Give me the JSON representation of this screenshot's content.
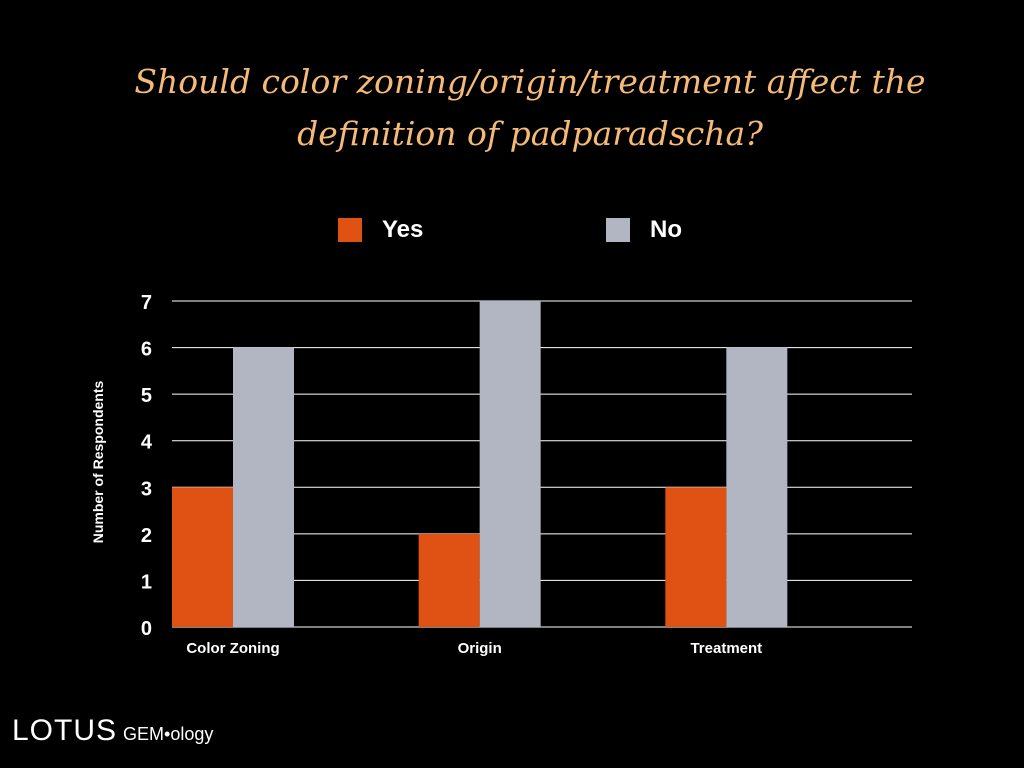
{
  "slide": {
    "title_lines": [
      "Should color zoning/origin/treatment affect the",
      "definition of padparadscha?"
    ],
    "title_color": "#f5b978"
  },
  "chart_data": {
    "type": "bar",
    "categories": [
      "Color Zoning",
      "Origin",
      "Treatment"
    ],
    "series": [
      {
        "name": "Yes",
        "values": [
          3,
          2,
          3
        ],
        "color": "#e05214"
      },
      {
        "name": "No",
        "values": [
          6,
          7,
          6
        ],
        "color": "#b2b6c2"
      }
    ],
    "ylabel": "Number of Respondents",
    "xlabel": "",
    "ylim": [
      0,
      7
    ],
    "yticks": [
      "0",
      "1",
      "2",
      "3",
      "4",
      "5",
      "6",
      "7"
    ],
    "grid": true,
    "legend_position": "top-center"
  },
  "footer": {
    "brand": "LOTUS",
    "sub": "GEM•ology"
  }
}
